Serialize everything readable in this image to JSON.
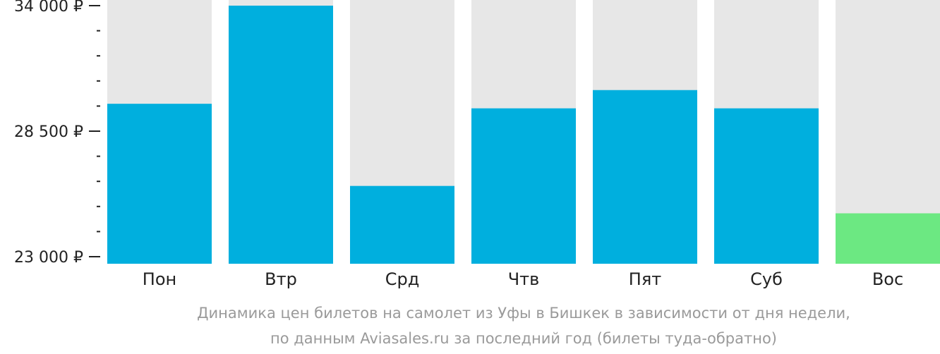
{
  "colors": {
    "bar": "#00afde",
    "bar_min": "#6ce882",
    "track": "#e7e7e7",
    "text": "#222222",
    "caption": "#9a9a9a"
  },
  "caption": {
    "line1": "Динамика цен билетов на самолет из Уфы в Бишкек в зависимости от дня недели,",
    "line2": "по данным Aviasales.ru за последний год (билеты туда-обратно)"
  },
  "chart_data": {
    "type": "bar",
    "categories": [
      "Пон",
      "Втр",
      "Срд",
      "Чтв",
      "Пят",
      "Суб",
      "Вос"
    ],
    "values": [
      29700,
      34000,
      26100,
      29500,
      30300,
      29500,
      24900
    ],
    "highlight_index": 6,
    "ylim": [
      23000,
      34000
    ],
    "yticks": [
      23000,
      28500,
      34000
    ],
    "ytick_labels": [
      "23 000 ₽",
      "28 500 ₽",
      "34 000 ₽"
    ],
    "minor_ticks_between": 4,
    "grid": false
  }
}
